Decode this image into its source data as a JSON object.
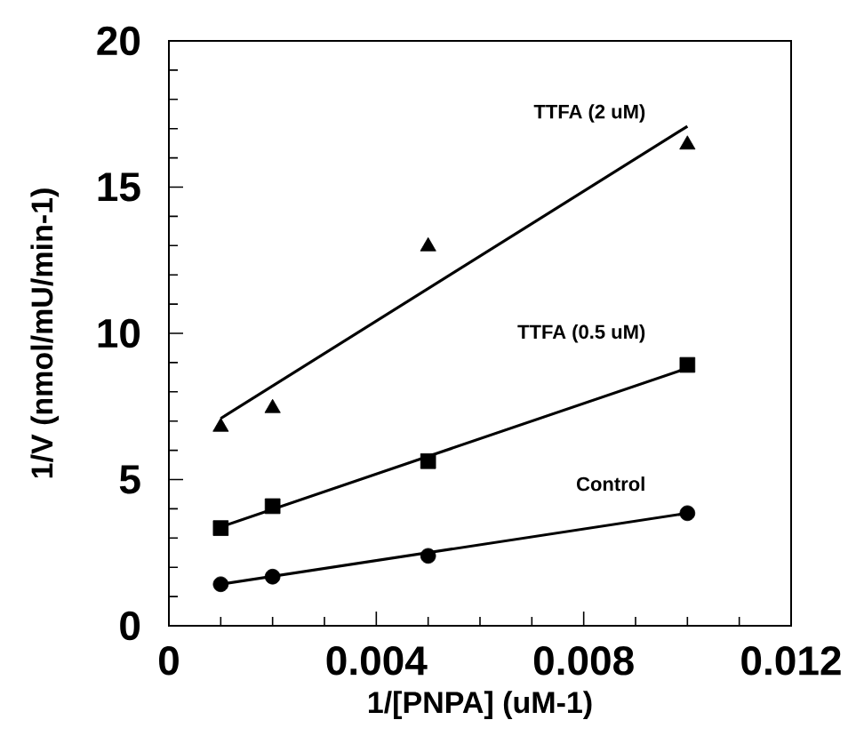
{
  "chart_data": {
    "type": "scatter",
    "xlabel": "1/[PNPA] (uM-1)",
    "ylabel": "1/V (nmol/mU/min-1)",
    "xlim": [
      0,
      0.012
    ],
    "ylim": [
      0,
      20
    ],
    "xticks": [
      0,
      0.004,
      0.008,
      0.012
    ],
    "yticks": [
      0,
      5,
      10,
      15,
      20
    ],
    "legend": false,
    "series": [
      {
        "name": "Control",
        "marker": "circle",
        "color": "#000000",
        "x": [
          0.001,
          0.002,
          0.005,
          0.01
        ],
        "values": [
          1.42,
          1.68,
          2.39,
          3.85
        ]
      },
      {
        "name": "TTFA (0.5 uM)",
        "marker": "square",
        "color": "#000000",
        "x": [
          0.001,
          0.002,
          0.005,
          0.01
        ],
        "values": [
          3.34,
          4.09,
          5.63,
          8.92
        ]
      },
      {
        "name": "TTFA (2 uM)",
        "marker": "triangle",
        "color": "#000000",
        "x": [
          0.001,
          0.002,
          0.005,
          0.01
        ],
        "values": [
          6.8,
          7.44,
          12.97,
          16.45
        ]
      },
      {
        "type": "line",
        "marker": "none",
        "color": "#000000",
        "x": [
          0.001,
          0.01
        ],
        "values": [
          1.42,
          3.85
        ]
      },
      {
        "type": "line",
        "marker": "none",
        "color": "#000000",
        "x": [
          0.001,
          0.01
        ],
        "values": [
          3.38,
          8.81
        ]
      },
      {
        "type": "line",
        "marker": "none",
        "color": "#000000",
        "x": [
          0.001,
          0.01
        ],
        "values": [
          7.09,
          17.08
        ]
      }
    ]
  }
}
